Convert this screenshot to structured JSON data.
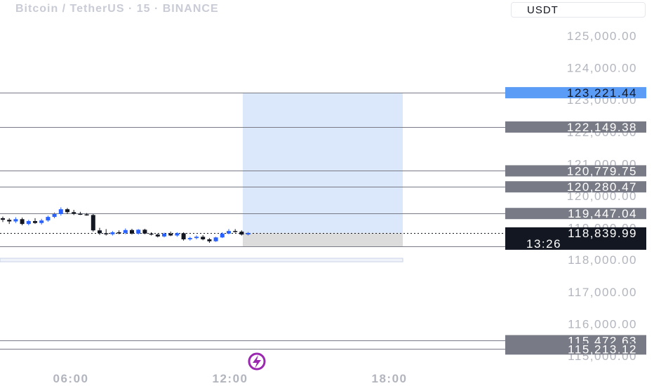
{
  "header": {
    "title": "Bitcoin / TetherUS · 15 · BINANCE",
    "currency": "USDT"
  },
  "logo_icon": "lightning-bolt-icon",
  "colors": {
    "up_candle": "#2962ff",
    "down_candle": "#131722",
    "line": "#787b86",
    "tag_bg": "#787b86",
    "tag_blue": "#5b9cf6",
    "tag_current": "#131722",
    "target_zone": "#dbe8fb",
    "stop_zone": "#dcdcdc",
    "accent_logo": "#9c27b0"
  },
  "chart_data": {
    "type": "candlestick",
    "title": "Bitcoin / TetherUS · 15 · BINANCE",
    "symbol": "BTCUSDT",
    "exchange": "BINANCE",
    "interval": "15",
    "currency": "USDT",
    "y_axis": {
      "ticks": [
        125000,
        124000,
        123000,
        122000,
        121000,
        120000,
        119000,
        118000,
        117000,
        116000,
        115000
      ],
      "tick_labels": [
        "125,000.00",
        "124,000.00",
        "123,000.00",
        "122,000.00",
        "121,000.00",
        "120,000.00",
        "119,000.00",
        "118,000.00",
        "117,000.00",
        "116,000.00",
        "115,000.00"
      ],
      "range": [
        114900,
        125450
      ]
    },
    "x_axis": {
      "tick_labels": [
        "06:00",
        "12:00",
        "18:00"
      ]
    },
    "price_lines": [
      {
        "value": 123221.44,
        "label": "123,221.44",
        "style": "target"
      },
      {
        "value": 122149.38,
        "label": "122,149.38",
        "style": "level"
      },
      {
        "value": 120779.75,
        "label": "120,779.75",
        "style": "level"
      },
      {
        "value": 120280.47,
        "label": "120,280.47",
        "style": "level"
      },
      {
        "value": 119447.04,
        "label": "119,447.04",
        "style": "level"
      },
      {
        "value": 115472.63,
        "label": "115,472.63",
        "style": "level"
      },
      {
        "value": 115213.12,
        "label": "115,213.12",
        "style": "level"
      }
    ],
    "current_price": {
      "value": 118839.99,
      "label": "118,839.99",
      "countdown": "13:26"
    },
    "position": {
      "entry": 118839.99,
      "target": 123221.44,
      "stop": 118400
    },
    "candles": [
      {
        "o": 119300,
        "h": 119350,
        "l": 119180,
        "c": 119250
      },
      {
        "o": 119250,
        "h": 119300,
        "l": 119120,
        "c": 119200
      },
      {
        "o": 119200,
        "h": 119330,
        "l": 119150,
        "c": 119270
      },
      {
        "o": 119270,
        "h": 119320,
        "l": 119080,
        "c": 119120
      },
      {
        "o": 119120,
        "h": 119250,
        "l": 119080,
        "c": 119210
      },
      {
        "o": 119210,
        "h": 119300,
        "l": 119120,
        "c": 119150
      },
      {
        "o": 119150,
        "h": 119280,
        "l": 119100,
        "c": 119230
      },
      {
        "o": 119230,
        "h": 119380,
        "l": 119190,
        "c": 119340
      },
      {
        "o": 119340,
        "h": 119480,
        "l": 119300,
        "c": 119430
      },
      {
        "o": 119430,
        "h": 119640,
        "l": 119380,
        "c": 119580
      },
      {
        "o": 119580,
        "h": 119620,
        "l": 119430,
        "c": 119490
      },
      {
        "o": 119490,
        "h": 119560,
        "l": 119400,
        "c": 119440
      },
      {
        "o": 119440,
        "h": 119500,
        "l": 119400,
        "c": 119420
      },
      {
        "o": 119420,
        "h": 119460,
        "l": 119380,
        "c": 119400
      },
      {
        "o": 119400,
        "h": 119430,
        "l": 118880,
        "c": 118920
      },
      {
        "o": 118920,
        "h": 119000,
        "l": 118780,
        "c": 118830
      },
      {
        "o": 118830,
        "h": 118960,
        "l": 118760,
        "c": 118800
      },
      {
        "o": 118800,
        "h": 118900,
        "l": 118760,
        "c": 118860
      },
      {
        "o": 118860,
        "h": 118920,
        "l": 118800,
        "c": 118840
      },
      {
        "o": 118840,
        "h": 118980,
        "l": 118800,
        "c": 118930
      },
      {
        "o": 118930,
        "h": 118970,
        "l": 118790,
        "c": 118820
      },
      {
        "o": 118820,
        "h": 118960,
        "l": 118790,
        "c": 118940
      },
      {
        "o": 118940,
        "h": 118970,
        "l": 118800,
        "c": 118820
      },
      {
        "o": 118820,
        "h": 118860,
        "l": 118760,
        "c": 118790
      },
      {
        "o": 118790,
        "h": 118820,
        "l": 118700,
        "c": 118730
      },
      {
        "o": 118730,
        "h": 118850,
        "l": 118700,
        "c": 118820
      },
      {
        "o": 118820,
        "h": 118880,
        "l": 118740,
        "c": 118760
      },
      {
        "o": 118760,
        "h": 118860,
        "l": 118720,
        "c": 118830
      },
      {
        "o": 118830,
        "h": 118860,
        "l": 118600,
        "c": 118640
      },
      {
        "o": 118640,
        "h": 118720,
        "l": 118600,
        "c": 118680
      },
      {
        "o": 118680,
        "h": 118760,
        "l": 118640,
        "c": 118720
      },
      {
        "o": 118720,
        "h": 118770,
        "l": 118610,
        "c": 118640
      },
      {
        "o": 118640,
        "h": 118680,
        "l": 118530,
        "c": 118580
      },
      {
        "o": 118580,
        "h": 118720,
        "l": 118560,
        "c": 118700
      },
      {
        "o": 118700,
        "h": 118860,
        "l": 118680,
        "c": 118820
      },
      {
        "o": 118820,
        "h": 118960,
        "l": 118800,
        "c": 118900
      },
      {
        "o": 118900,
        "h": 118960,
        "l": 118850,
        "c": 118880
      },
      {
        "o": 118880,
        "h": 118920,
        "l": 118760,
        "c": 118790
      },
      {
        "o": 118790,
        "h": 118870,
        "l": 118760,
        "c": 118840
      }
    ]
  }
}
